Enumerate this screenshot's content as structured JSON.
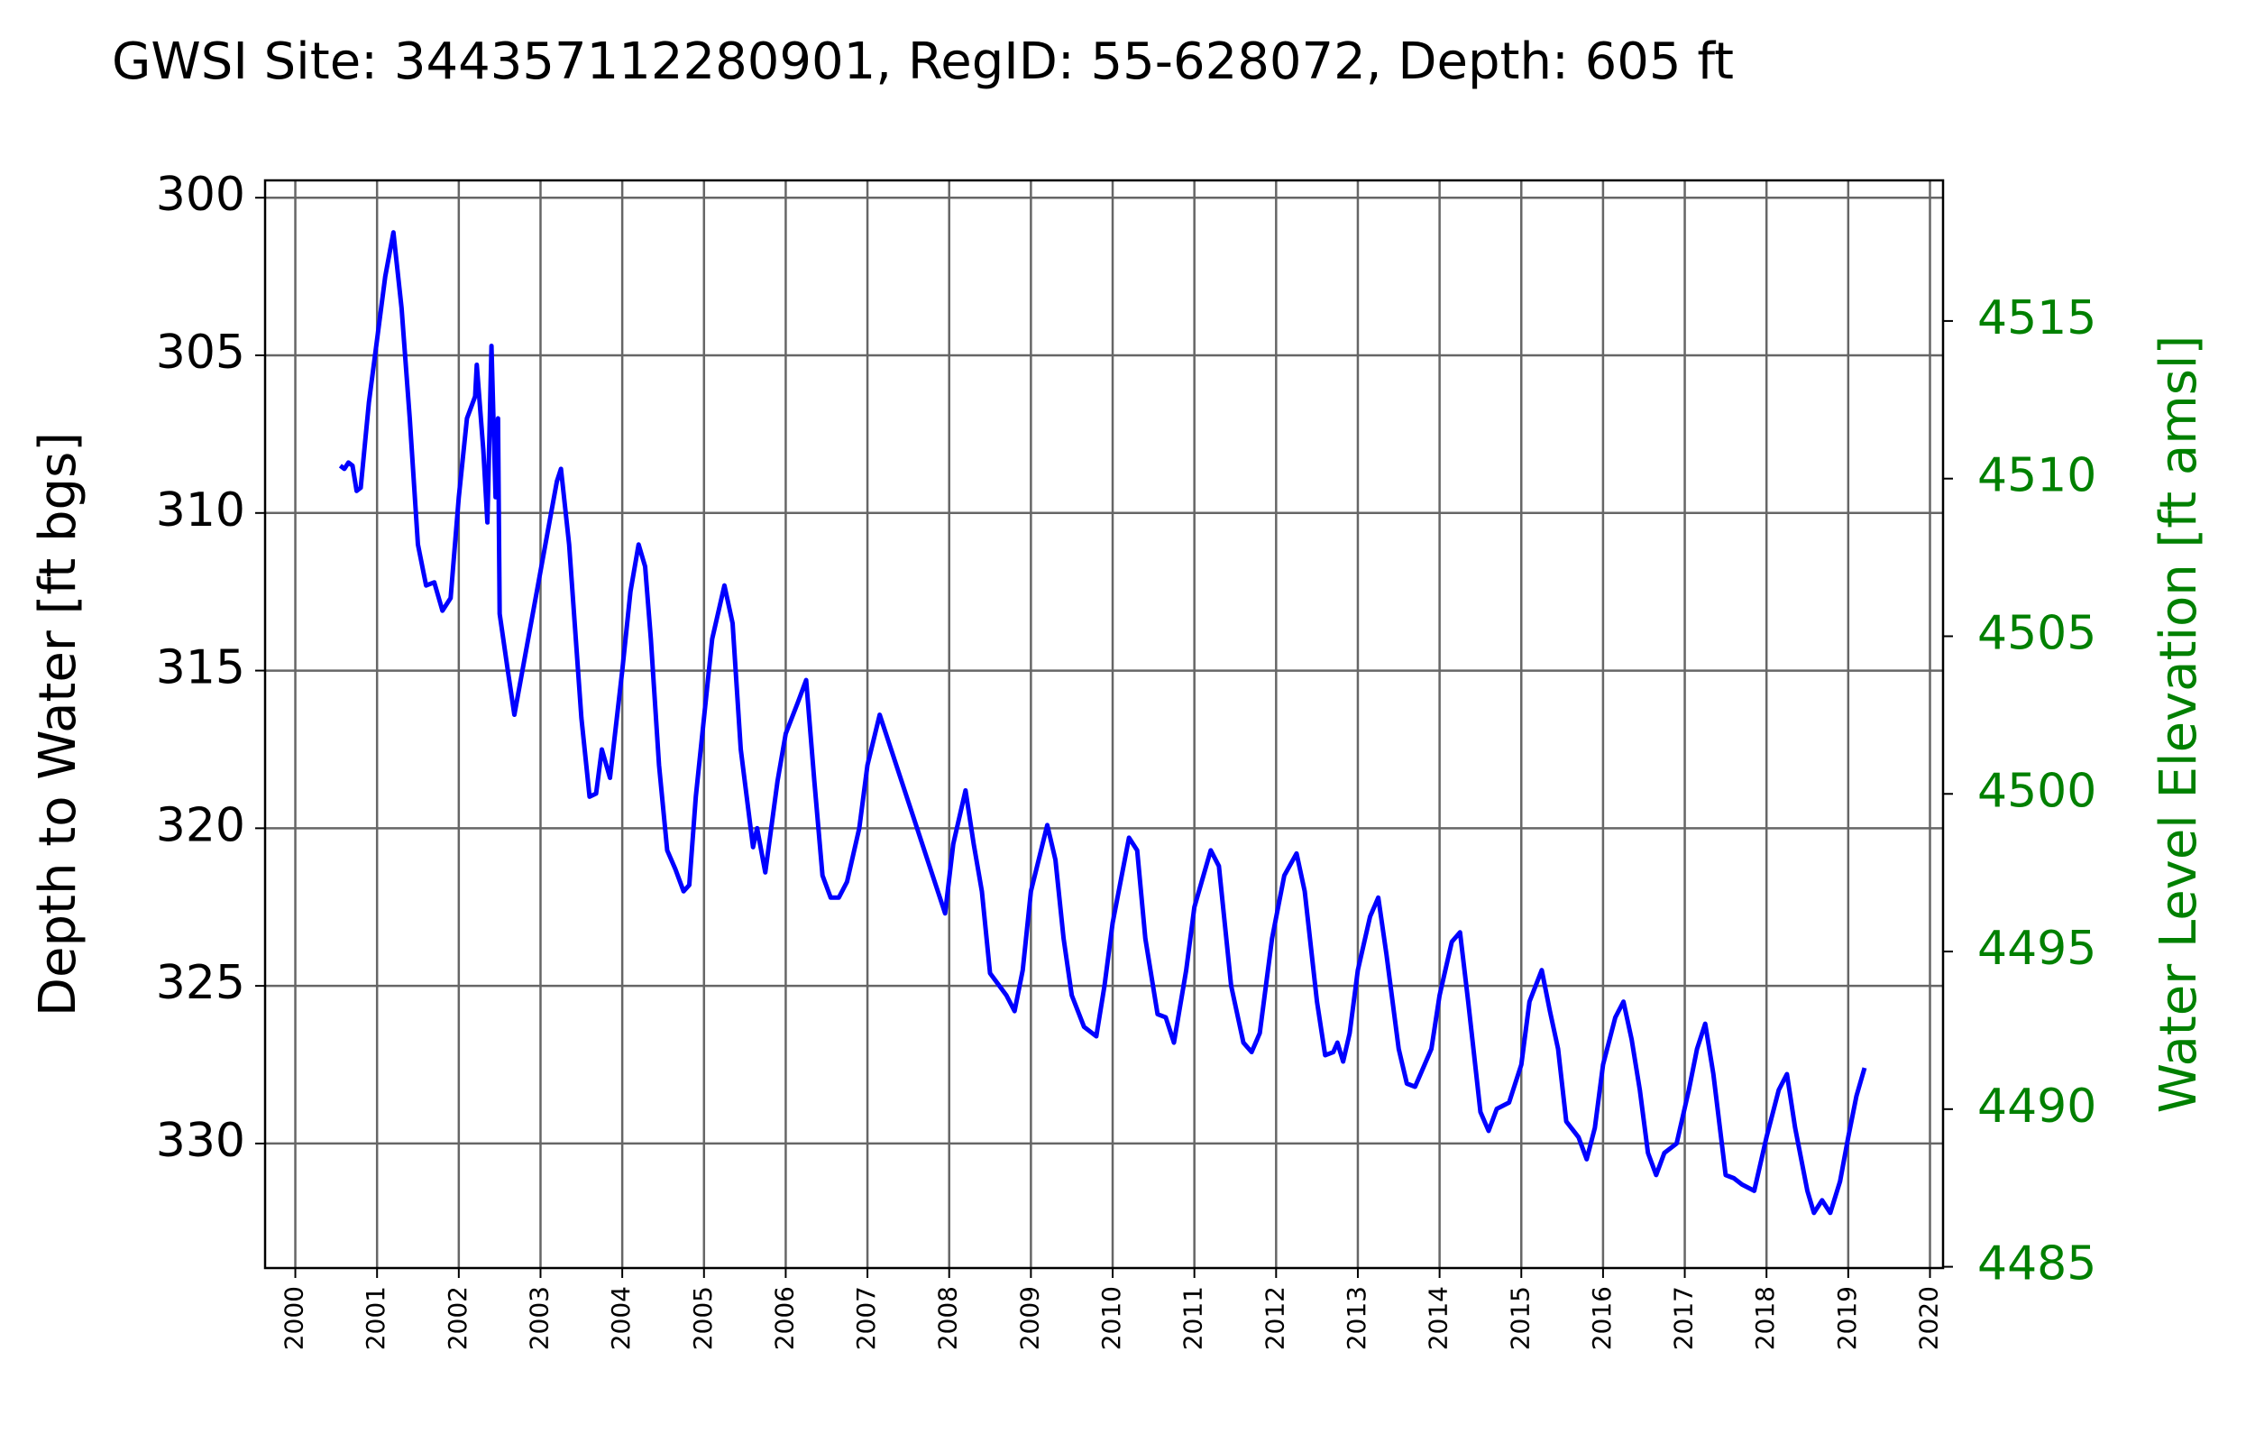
{
  "chart_data": {
    "type": "line",
    "title": "GWSI Site: 344357112280901, RegID: 55-628072, Depth: 605 ft",
    "ylabel": "Depth to Water [ft bgs]",
    "y2label": "Water Level Elevation [ft amsl]",
    "y2color": "green",
    "color": "#0000ff",
    "grid": true,
    "y_inverted": true,
    "xlim": [
      1999.63,
      2020.16
    ],
    "xticks": [
      2000,
      2001,
      2002,
      2003,
      2004,
      2005,
      2006,
      2007,
      2008,
      2009,
      2010,
      2011,
      2012,
      2013,
      2014,
      2015,
      2016,
      2017,
      2018,
      2019,
      2020
    ],
    "ylim": [
      333.95,
      299.45
    ],
    "yticks": [
      300,
      305,
      310,
      315,
      320,
      325,
      330
    ],
    "y2lim": [
      4484.96,
      4519.46
    ],
    "y2ticks": [
      4485,
      4490,
      4495,
      4500,
      4505,
      4510,
      4515
    ],
    "x": [
      2000.55,
      2000.6,
      2000.65,
      2000.7,
      2000.75,
      2000.8,
      2000.9,
      2001.0,
      2001.1,
      2001.2,
      2001.3,
      2001.4,
      2001.5,
      2001.6,
      2001.7,
      2001.8,
      2001.9,
      2002.0,
      2002.1,
      2002.2,
      2002.22,
      2002.3,
      2002.35,
      2002.4,
      2002.45,
      2002.48,
      2002.5,
      2002.6,
      2002.68,
      2003.2,
      2003.25,
      2003.35,
      2003.5,
      2003.6,
      2003.68,
      2003.75,
      2003.85,
      2004.0,
      2004.1,
      2004.2,
      2004.28,
      2004.35,
      2004.45,
      2004.55,
      2004.65,
      2004.75,
      2004.82,
      2004.9,
      2005.0,
      2005.1,
      2005.25,
      2005.35,
      2005.45,
      2005.6,
      2005.65,
      2005.75,
      2005.9,
      2006.0,
      2006.15,
      2006.25,
      2006.35,
      2006.45,
      2006.55,
      2006.65,
      2006.75,
      2006.9,
      2007.0,
      2007.15,
      2007.95,
      2008.05,
      2008.2,
      2008.3,
      2008.4,
      2008.5,
      2008.7,
      2008.8,
      2008.9,
      2009.0,
      2009.2,
      2009.3,
      2009.4,
      2009.5,
      2009.65,
      2009.8,
      2009.9,
      2010.0,
      2010.2,
      2010.3,
      2010.4,
      2010.55,
      2010.65,
      2010.75,
      2010.9,
      2011.0,
      2011.2,
      2011.3,
      2011.45,
      2011.6,
      2011.7,
      2011.8,
      2011.95,
      2012.1,
      2012.25,
      2012.35,
      2012.5,
      2012.6,
      2012.7,
      2012.75,
      2012.82,
      2012.9,
      2013.0,
      2013.15,
      2013.25,
      2013.35,
      2013.5,
      2013.6,
      2013.7,
      2013.8,
      2013.9,
      2014.0,
      2014.15,
      2014.25,
      2014.35,
      2014.5,
      2014.6,
      2014.7,
      2014.85,
      2015.0,
      2015.1,
      2015.25,
      2015.35,
      2015.45,
      2015.55,
      2015.7,
      2015.8,
      2015.9,
      2016.0,
      2016.15,
      2016.25,
      2016.35,
      2016.45,
      2016.55,
      2016.65,
      2016.75,
      2016.9,
      2017.05,
      2017.15,
      2017.25,
      2017.35,
      2017.5,
      2017.6,
      2017.7,
      2017.85,
      2018.0,
      2018.15,
      2018.25,
      2018.35,
      2018.5,
      2018.58,
      2018.68,
      2018.78,
      2018.9,
      2019.0,
      2019.1,
      2019.2
    ],
    "values": [
      308.5,
      308.6,
      308.4,
      308.5,
      309.3,
      309.2,
      306.5,
      304.5,
      302.5,
      301.1,
      303.5,
      307,
      311,
      312.3,
      312.2,
      313.1,
      312.7,
      309.5,
      307,
      306.3,
      305.3,
      308,
      310.3,
      304.7,
      309.5,
      307,
      313.2,
      315,
      316.4,
      309,
      308.6,
      311,
      316.5,
      319,
      318.9,
      317.5,
      318.4,
      315,
      312.5,
      311,
      311.7,
      314,
      318,
      320.7,
      321.3,
      322,
      321.8,
      319,
      316.5,
      314,
      312.3,
      313.5,
      317.5,
      320.6,
      320,
      321.4,
      318.5,
      317,
      316,
      315.3,
      318.5,
      321.5,
      322.2,
      322.2,
      321.7,
      320,
      318,
      316.4,
      322.7,
      320.5,
      318.8,
      320.5,
      322,
      324.6,
      325.3,
      325.8,
      324.5,
      322,
      319.9,
      321,
      323.5,
      325.3,
      326.3,
      326.6,
      325,
      323,
      320.3,
      320.7,
      323.5,
      325.9,
      326,
      326.8,
      324.5,
      322.5,
      320.7,
      321.2,
      325,
      326.8,
      327.1,
      326.5,
      323.5,
      321.5,
      320.8,
      322,
      325.5,
      327.2,
      327.1,
      326.8,
      327.4,
      326.5,
      324.5,
      322.8,
      322.2,
      324,
      327,
      328.1,
      328.2,
      327.6,
      327,
      325.3,
      323.6,
      323.3,
      325.5,
      329,
      329.6,
      328.9,
      328.7,
      327.5,
      325.5,
      324.5,
      325.8,
      327,
      329.3,
      329.8,
      330.5,
      329.5,
      327.5,
      326,
      325.5,
      326.7,
      328.3,
      330.3,
      331,
      330.3,
      330,
      328.3,
      327,
      326.2,
      327.8,
      331,
      331.1,
      331.3,
      331.5,
      329.8,
      328.3,
      327.8,
      329.5,
      331.5,
      332.2,
      331.8,
      332.2,
      331.2,
      329.8,
      328.5,
      327.6
    ]
  }
}
